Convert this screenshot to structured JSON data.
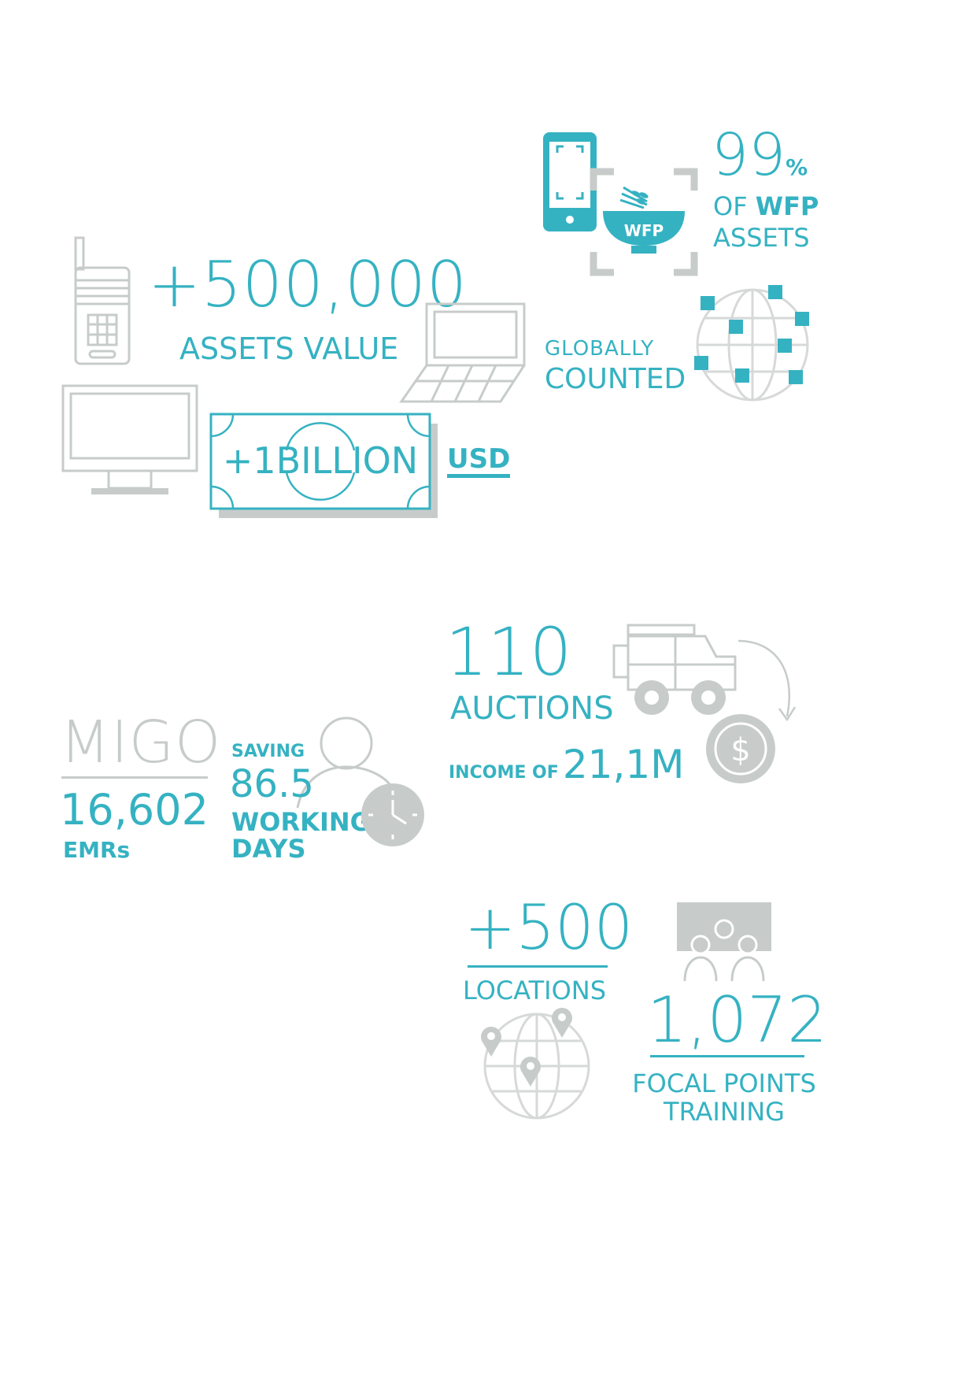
{
  "colors": {
    "teal": "#35b2c2",
    "grey": "#c7cccb",
    "light_grey": "#d6d9d8"
  },
  "wfp": {
    "percent_value": "99",
    "percent_sign": "%",
    "of_label": "OF",
    "org": "WFP",
    "assets_label": "ASSETS",
    "bowl_label": "WFP"
  },
  "assets": {
    "count": "+500,000",
    "label": "ASSETS VALUE",
    "billion": "+1BILLION",
    "currency": "USD"
  },
  "global": {
    "line1": "GLOBALLY",
    "line2": "COUNTED"
  },
  "auctions": {
    "count": "110",
    "label": "AUCTIONS",
    "income_label": "INCOME OF",
    "income_value": "21,1M",
    "coin_symbol": "$"
  },
  "migo": {
    "title": "MIGO",
    "emr_count": "16,602",
    "emr_label": "EMRs",
    "saving_label": "SAVING",
    "saving_value": "86.5",
    "working_label": "WORKING",
    "days_label": "DAYS"
  },
  "locations": {
    "count": "+500",
    "label": "LOCATIONS"
  },
  "training": {
    "count": "1,072",
    "line1": "FOCAL POINTS",
    "line2": "TRAINING"
  },
  "icons": [
    "smartphone-icon",
    "bowl-icon",
    "scan-frame-icon",
    "globe-icon",
    "walkie-talkie-icon",
    "laptop-icon",
    "monitor-icon",
    "banknote-icon",
    "truck-icon",
    "arrow-icon",
    "coin-icon",
    "person-icon",
    "clock-icon",
    "map-globe-icon",
    "map-pin-icon",
    "presentation-icon"
  ]
}
